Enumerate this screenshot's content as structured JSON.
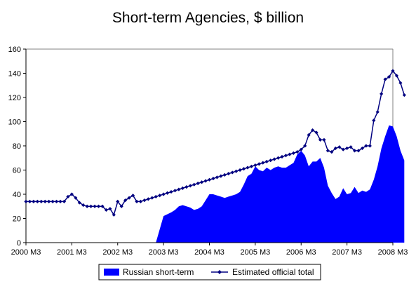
{
  "chart_data": {
    "type": "area+line",
    "title": "Short-term Agencies, $ billion",
    "xlabel": "",
    "ylabel": "",
    "ylim": [
      0,
      160
    ],
    "yticks": [
      0,
      20,
      40,
      60,
      80,
      100,
      120,
      140,
      160
    ],
    "x_tick_labels": [
      "2000 M3",
      "2001 M3",
      "2002 M3",
      "2003 M3",
      "2004 M3",
      "2005 M3",
      "2006 M3",
      "2007 M3",
      "2008 M3"
    ],
    "x_start": "2000 M3",
    "grid": "horizontal-top-only",
    "legend_position": "bottom",
    "series": [
      {
        "name": "Russian short-term",
        "kind": "area",
        "color": "#0000ff",
        "points": [
          [
            "2000 M3",
            0
          ],
          [
            "2001 M3",
            0
          ],
          [
            "2002 M3",
            0
          ],
          [
            "2002 M12",
            0
          ],
          [
            "2003 M1",
            0
          ],
          [
            "2003 M3",
            22
          ],
          [
            "2003 M5",
            25
          ],
          [
            "2003 M6",
            27
          ],
          [
            "2003 M7",
            30
          ],
          [
            "2003 M8",
            31
          ],
          [
            "2003 M9",
            30
          ],
          [
            "2003 M10",
            29
          ],
          [
            "2003 M11",
            27
          ],
          [
            "2003 M12",
            28
          ],
          [
            "2004 M1",
            30
          ],
          [
            "2004 M2",
            35
          ],
          [
            "2004 M3",
            40
          ],
          [
            "2004 M4",
            40
          ],
          [
            "2004 M5",
            39
          ],
          [
            "2004 M6",
            38
          ],
          [
            "2004 M7",
            37
          ],
          [
            "2004 M8",
            38
          ],
          [
            "2004 M9",
            39
          ],
          [
            "2004 M10",
            40
          ],
          [
            "2004 M11",
            42
          ],
          [
            "2004 M12",
            48
          ],
          [
            "2005 M1",
            55
          ],
          [
            "2005 M2",
            57
          ],
          [
            "2005 M3",
            63
          ],
          [
            "2005 M4",
            60
          ],
          [
            "2005 M5",
            59
          ],
          [
            "2005 M6",
            62
          ],
          [
            "2005 M7",
            60
          ],
          [
            "2005 M8",
            62
          ],
          [
            "2005 M9",
            63
          ],
          [
            "2005 M10",
            62
          ],
          [
            "2005 M11",
            62
          ],
          [
            "2005 M12",
            64
          ],
          [
            "2006 M1",
            66
          ],
          [
            "2006 M2",
            73
          ],
          [
            "2006 M3",
            76
          ],
          [
            "2006 M4",
            72
          ],
          [
            "2006 M5",
            63
          ],
          [
            "2006 M6",
            67
          ],
          [
            "2006 M7",
            67
          ],
          [
            "2006 M8",
            70
          ],
          [
            "2006 M9",
            62
          ],
          [
            "2006 M10",
            47
          ],
          [
            "2006 M11",
            41
          ],
          [
            "2006 M12",
            36
          ],
          [
            "2007 M1",
            38
          ],
          [
            "2007 M2",
            45
          ],
          [
            "2007 M3",
            40
          ],
          [
            "2007 M4",
            41
          ],
          [
            "2007 M5",
            46
          ],
          [
            "2007 M6",
            41
          ],
          [
            "2007 M7",
            43
          ],
          [
            "2007 M8",
            42
          ],
          [
            "2007 M9",
            44
          ],
          [
            "2007 M10",
            52
          ],
          [
            "2007 M11",
            63
          ],
          [
            "2007 M12",
            78
          ],
          [
            "2008 M1",
            88
          ],
          [
            "2008 M2",
            97
          ],
          [
            "2008 M3",
            96
          ],
          [
            "2008 M4",
            88
          ],
          [
            "2008 M5",
            76
          ],
          [
            "2008 M6",
            68
          ]
        ]
      },
      {
        "name": "Estimated official total",
        "kind": "line",
        "color": "#000080",
        "marker": "diamond",
        "points": [
          [
            "2000 M3",
            34
          ],
          [
            "2000 M4",
            34
          ],
          [
            "2000 M5",
            34
          ],
          [
            "2000 M6",
            34
          ],
          [
            "2000 M7",
            34
          ],
          [
            "2000 M8",
            34
          ],
          [
            "2000 M9",
            34
          ],
          [
            "2000 M10",
            34
          ],
          [
            "2000 M11",
            34
          ],
          [
            "2000 M12",
            34
          ],
          [
            "2001 M1",
            34
          ],
          [
            "2001 M2",
            38
          ],
          [
            "2001 M3",
            40
          ],
          [
            "2001 M4",
            37
          ],
          [
            "2001 M5",
            33
          ],
          [
            "2001 M6",
            31
          ],
          [
            "2001 M7",
            30
          ],
          [
            "2001 M8",
            30
          ],
          [
            "2001 M9",
            30
          ],
          [
            "2001 M10",
            30
          ],
          [
            "2001 M11",
            30
          ],
          [
            "2001 M12",
            27
          ],
          [
            "2002 M1",
            28
          ],
          [
            "2002 M2",
            23
          ],
          [
            "2002 M3",
            34
          ],
          [
            "2002 M4",
            30
          ],
          [
            "2002 M5",
            35
          ],
          [
            "2002 M6",
            37
          ],
          [
            "2002 M7",
            39
          ],
          [
            "2002 M8",
            34
          ],
          [
            "2002 M9",
            34
          ],
          [
            "2002 M10",
            35
          ],
          [
            "2002 M11",
            36
          ],
          [
            "2002 M12",
            37
          ],
          [
            "2003 M1",
            38
          ],
          [
            "2003 M2",
            39
          ],
          [
            "2003 M3",
            40
          ],
          [
            "2003 M4",
            41
          ],
          [
            "2003 M5",
            42
          ],
          [
            "2003 M6",
            43
          ],
          [
            "2003 M7",
            44
          ],
          [
            "2003 M8",
            45
          ],
          [
            "2003 M9",
            46
          ],
          [
            "2003 M10",
            47
          ],
          [
            "2003 M11",
            48
          ],
          [
            "2003 M12",
            49
          ],
          [
            "2004 M1",
            50
          ],
          [
            "2004 M2",
            51
          ],
          [
            "2004 M3",
            52
          ],
          [
            "2004 M4",
            53
          ],
          [
            "2004 M5",
            54
          ],
          [
            "2004 M6",
            55
          ],
          [
            "2004 M7",
            56
          ],
          [
            "2004 M8",
            57
          ],
          [
            "2004 M9",
            58
          ],
          [
            "2004 M10",
            59
          ],
          [
            "2004 M11",
            60
          ],
          [
            "2004 M12",
            61
          ],
          [
            "2005 M1",
            62
          ],
          [
            "2005 M2",
            63
          ],
          [
            "2005 M3",
            64
          ],
          [
            "2005 M4",
            65
          ],
          [
            "2005 M5",
            66
          ],
          [
            "2005 M6",
            67
          ],
          [
            "2005 M7",
            68
          ],
          [
            "2005 M8",
            69
          ],
          [
            "2005 M9",
            70
          ],
          [
            "2005 M10",
            71
          ],
          [
            "2005 M11",
            72
          ],
          [
            "2005 M12",
            73
          ],
          [
            "2006 M1",
            74
          ],
          [
            "2006 M2",
            75
          ],
          [
            "2006 M3",
            77
          ],
          [
            "2006 M4",
            80
          ],
          [
            "2006 M5",
            89
          ],
          [
            "2006 M6",
            93
          ],
          [
            "2006 M7",
            91
          ],
          [
            "2006 M8",
            85
          ],
          [
            "2006 M9",
            85
          ],
          [
            "2006 M10",
            76
          ],
          [
            "2006 M11",
            75
          ],
          [
            "2006 M12",
            78
          ],
          [
            "2007 M1",
            79
          ],
          [
            "2007 M2",
            77
          ],
          [
            "2007 M3",
            78
          ],
          [
            "2007 M4",
            79
          ],
          [
            "2007 M5",
            76
          ],
          [
            "2007 M6",
            76
          ],
          [
            "2007 M7",
            78
          ],
          [
            "2007 M8",
            80
          ],
          [
            "2007 M9",
            80
          ],
          [
            "2007 M10",
            101
          ],
          [
            "2007 M11",
            108
          ],
          [
            "2007 M12",
            123
          ],
          [
            "2008 M1",
            135
          ],
          [
            "2008 M2",
            137
          ],
          [
            "2008 M3",
            142
          ],
          [
            "2008 M4",
            138
          ],
          [
            "2008 M5",
            132
          ],
          [
            "2008 M6",
            122
          ]
        ]
      }
    ]
  }
}
